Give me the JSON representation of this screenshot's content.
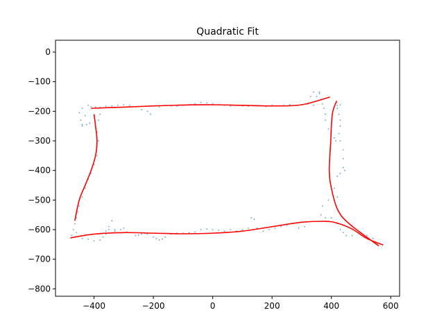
{
  "chart_data": {
    "type": "scatter",
    "title": "Quadratic Fit",
    "xlabel": "",
    "ylabel": "",
    "xlim": [
      -530,
      630
    ],
    "ylim": [
      -825,
      40
    ],
    "xticks": [
      -400,
      -200,
      0,
      200,
      400,
      600
    ],
    "yticks": [
      0,
      -100,
      -200,
      -300,
      -400,
      -500,
      -600,
      -700,
      -800
    ],
    "xtick_labels": [
      "−400",
      "−200",
      "0",
      "200",
      "400",
      "600"
    ],
    "ytick_labels": [
      "0",
      "−100",
      "−200",
      "−300",
      "−400",
      "−500",
      "−600",
      "−700",
      "−800"
    ],
    "grid": false,
    "colors": {
      "points": "#1f77b4",
      "fit": "#ff0000"
    },
    "fit_curves": [
      {
        "name": "top",
        "x": [
          -410,
          -300,
          -200,
          -100,
          0,
          100,
          200,
          300,
          395
        ],
        "y": [
          -190,
          -186,
          -182,
          -179,
          -178,
          -180,
          -182,
          -178,
          -152
        ]
      },
      {
        "name": "left",
        "x": [
          -400,
          -395,
          -390,
          -395,
          -410,
          -430,
          -450,
          -465
        ],
        "y": [
          -210,
          -250,
          -300,
          -350,
          -400,
          -450,
          -500,
          -570
        ]
      },
      {
        "name": "right",
        "x": [
          418,
          405,
          400,
          398,
          395,
          393,
          398,
          420,
          460,
          560
        ],
        "y": [
          -165,
          -200,
          -250,
          -300,
          -350,
          -400,
          -450,
          -530,
          -580,
          -655
        ]
      },
      {
        "name": "bottom",
        "x": [
          -480,
          -400,
          -300,
          -200,
          -100,
          0,
          100,
          200,
          300,
          380,
          420,
          470,
          520,
          575
        ],
        "y": [
          -628,
          -615,
          -610,
          -612,
          -614,
          -612,
          -605,
          -590,
          -575,
          -572,
          -578,
          -598,
          -630,
          -652
        ]
      }
    ],
    "points": [
      [
        -420,
        -180
      ],
      [
        -410,
        -185
      ],
      [
        -440,
        -190
      ],
      [
        -450,
        -205
      ],
      [
        -430,
        -215
      ],
      [
        -445,
        -230
      ],
      [
        -440,
        -245
      ],
      [
        -425,
        -245
      ],
      [
        -415,
        -240
      ],
      [
        -440,
        -250
      ],
      [
        -395,
        -185
      ],
      [
        -380,
        -187
      ],
      [
        -360,
        -183
      ],
      [
        -340,
        -182
      ],
      [
        -320,
        -180
      ],
      [
        -300,
        -178
      ],
      [
        -280,
        -180
      ],
      [
        -260,
        -185
      ],
      [
        -240,
        -195
      ],
      [
        -220,
        -200
      ],
      [
        -210,
        -210
      ],
      [
        -180,
        -185
      ],
      [
        -160,
        -180
      ],
      [
        -140,
        -182
      ],
      [
        -120,
        -182
      ],
      [
        -100,
        -180
      ],
      [
        -80,
        -178
      ],
      [
        -60,
        -175
      ],
      [
        -40,
        -170
      ],
      [
        -20,
        -172
      ],
      [
        0,
        -175
      ],
      [
        20,
        -177
      ],
      [
        40,
        -180
      ],
      [
        60,
        -182
      ],
      [
        80,
        -180
      ],
      [
        100,
        -182
      ],
      [
        120,
        -183
      ],
      [
        140,
        -182
      ],
      [
        160,
        -182
      ],
      [
        180,
        -184
      ],
      [
        200,
        -180
      ],
      [
        220,
        -182
      ],
      [
        240,
        -180
      ],
      [
        260,
        -178
      ],
      [
        280,
        -180
      ],
      [
        300,
        -178
      ],
      [
        320,
        -176
      ],
      [
        340,
        -180
      ],
      [
        360,
        -140
      ],
      [
        350,
        -150
      ],
      [
        330,
        -150
      ],
      [
        340,
        -135
      ],
      [
        360,
        -135
      ],
      [
        365,
        -160
      ],
      [
        370,
        -175
      ],
      [
        375,
        -190
      ],
      [
        380,
        -210
      ],
      [
        380,
        -230
      ],
      [
        390,
        -260
      ],
      [
        400,
        -270
      ],
      [
        410,
        -290
      ],
      [
        415,
        -300
      ],
      [
        420,
        -180
      ],
      [
        430,
        -178
      ],
      [
        420,
        -190
      ],
      [
        425,
        -210
      ],
      [
        430,
        -230
      ],
      [
        430,
        -250
      ],
      [
        425,
        -275
      ],
      [
        430,
        -300
      ],
      [
        440,
        -330
      ],
      [
        440,
        -360
      ],
      [
        440,
        -390
      ],
      [
        445,
        -400
      ],
      [
        430,
        -410
      ],
      [
        420,
        -420
      ],
      [
        410,
        -460
      ],
      [
        420,
        -490
      ],
      [
        390,
        -500
      ],
      [
        370,
        -520
      ],
      [
        365,
        -550
      ],
      [
        380,
        -560
      ],
      [
        400,
        -560
      ],
      [
        420,
        -580
      ],
      [
        430,
        -600
      ],
      [
        440,
        -610
      ],
      [
        450,
        -620
      ],
      [
        470,
        -620
      ],
      [
        500,
        -610
      ],
      [
        520,
        -620
      ],
      [
        540,
        -630
      ],
      [
        555,
        -645
      ],
      [
        -380,
        -210
      ],
      [
        -385,
        -230
      ],
      [
        -390,
        -270
      ],
      [
        -385,
        -300
      ],
      [
        -390,
        -320
      ],
      [
        -390,
        -350
      ],
      [
        -400,
        -380
      ],
      [
        -410,
        -410
      ],
      [
        -420,
        -430
      ],
      [
        -430,
        -460
      ],
      [
        -440,
        -490
      ],
      [
        -450,
        -520
      ],
      [
        -455,
        -540
      ],
      [
        -460,
        -560
      ],
      [
        -465,
        -580
      ],
      [
        -470,
        -600
      ],
      [
        -475,
        -620
      ],
      [
        -460,
        -610
      ],
      [
        -440,
        -630
      ],
      [
        -420,
        -632
      ],
      [
        -400,
        -638
      ],
      [
        -380,
        -635
      ],
      [
        -370,
        -625
      ],
      [
        -360,
        -615
      ],
      [
        -350,
        -600
      ],
      [
        -330,
        -605
      ],
      [
        -310,
        -600
      ],
      [
        -300,
        -595
      ],
      [
        -280,
        -610
      ],
      [
        -260,
        -620
      ],
      [
        -240,
        -615
      ],
      [
        -220,
        -615
      ],
      [
        -200,
        -625
      ],
      [
        -180,
        -635
      ],
      [
        -160,
        -625
      ],
      [
        -140,
        -615
      ],
      [
        -120,
        -612
      ],
      [
        -100,
        -612
      ],
      [
        -80,
        -610
      ],
      [
        -60,
        -608
      ],
      [
        -40,
        -600
      ],
      [
        -20,
        -598
      ],
      [
        0,
        -600
      ],
      [
        20,
        -602
      ],
      [
        40,
        -605
      ],
      [
        60,
        -600
      ],
      [
        80,
        -605
      ],
      [
        100,
        -600
      ],
      [
        120,
        -595
      ],
      [
        130,
        -560
      ],
      [
        140,
        -565
      ],
      [
        150,
        -595
      ],
      [
        170,
        -605
      ],
      [
        190,
        -600
      ],
      [
        210,
        -595
      ],
      [
        230,
        -590
      ],
      [
        250,
        -585
      ],
      [
        270,
        -580
      ],
      [
        290,
        -595
      ],
      [
        310,
        -590
      ],
      [
        -340,
        -570
      ],
      [
        -350,
        -590
      ],
      [
        -360,
        -605
      ],
      [
        -330,
        -600
      ],
      [
        -320,
        -610
      ],
      [
        -290,
        -608
      ],
      [
        -250,
        -618
      ],
      [
        -230,
        -612
      ],
      [
        -190,
        -630
      ],
      [
        -170,
        -632
      ]
    ]
  }
}
